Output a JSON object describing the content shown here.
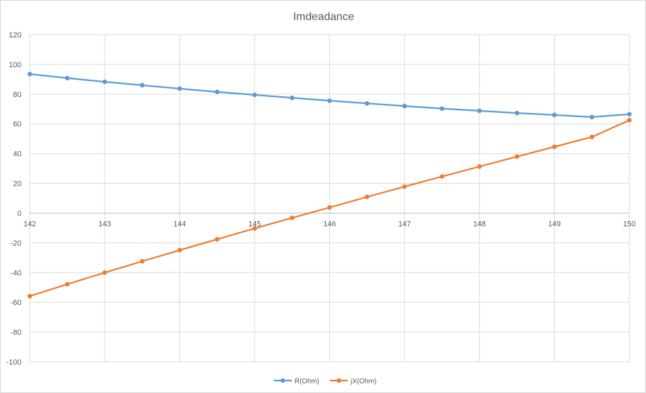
{
  "chart_data": {
    "type": "line",
    "title": "Imdeadance",
    "xlabel": "",
    "ylabel": "",
    "xlim": [
      142,
      150
    ],
    "ylim": [
      -100,
      120
    ],
    "x_ticks": [
      142,
      143,
      144,
      145,
      146,
      147,
      148,
      149,
      150
    ],
    "y_ticks": [
      -100,
      -80,
      -60,
      -40,
      -20,
      0,
      20,
      40,
      60,
      80,
      100,
      120
    ],
    "grid": true,
    "legend_position": "bottom",
    "x": [
      142,
      142.5,
      143,
      143.5,
      144,
      144.5,
      145,
      145.5,
      146,
      146.5,
      147,
      147.5,
      148,
      148.5,
      149,
      149.5,
      150
    ],
    "series": [
      {
        "name": "R(Ohm)",
        "color": "#5b9bd5",
        "values": [
          93.5,
          90.8,
          88.3,
          86.0,
          83.7,
          81.5,
          79.5,
          77.5,
          75.6,
          73.8,
          72.0,
          70.3,
          68.8,
          67.3,
          66.0,
          64.6,
          66.5
        ]
      },
      {
        "name": "jX(Ohm)",
        "color": "#ed7d31",
        "values": [
          -55.8,
          -47.8,
          -40.0,
          -32.4,
          -24.9,
          -17.6,
          -10.3,
          -3.2,
          3.8,
          10.9,
          17.8,
          24.6,
          31.3,
          38.0,
          44.6,
          51.2,
          62.5
        ]
      }
    ]
  }
}
